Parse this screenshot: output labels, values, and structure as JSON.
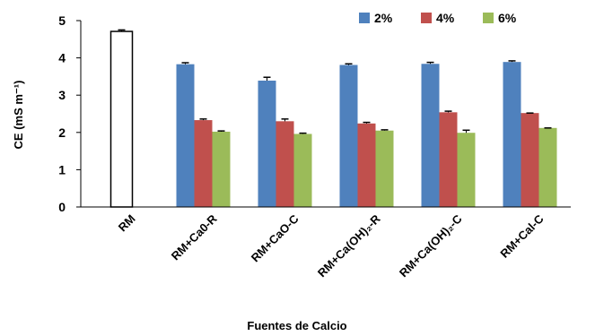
{
  "chart_data": {
    "type": "bar",
    "xlabel": "Fuentes de Calcio",
    "ylabel": "CE (mS m⁻¹)",
    "ylim": [
      0,
      5
    ],
    "yticks": [
      0,
      1,
      2,
      3,
      4,
      5
    ],
    "grid": false,
    "legend_position": "top-right",
    "categories": [
      "RM",
      "RM+Ca0-R",
      "RM+CaO-C",
      "RM+Ca(OH)₂-R",
      "RM+Ca(OH)₂-C",
      "RM+Cal-C"
    ],
    "reference": {
      "name": "RM",
      "category": "RM",
      "value": 4.71,
      "error": 0.04,
      "color": "#ffffff",
      "stroke": "#000000"
    },
    "series": [
      {
        "name": "2%",
        "color": "#4f81bd",
        "values": [
          null,
          3.83,
          3.39,
          3.81,
          3.84,
          3.89
        ],
        "errors": [
          null,
          0.04,
          0.09,
          0.03,
          0.04,
          0.03
        ]
      },
      {
        "name": "4%",
        "color": "#c0504d",
        "values": [
          null,
          2.33,
          2.3,
          2.24,
          2.54,
          2.52
        ],
        "errors": [
          null,
          0.03,
          0.06,
          0.03,
          0.03,
          0.0
        ]
      },
      {
        "name": "6%",
        "color": "#9bbb59",
        "values": [
          null,
          2.02,
          1.96,
          2.05,
          1.99,
          2.12
        ],
        "errors": [
          null,
          0.02,
          0.02,
          0.02,
          0.07,
          0.0
        ]
      }
    ]
  }
}
